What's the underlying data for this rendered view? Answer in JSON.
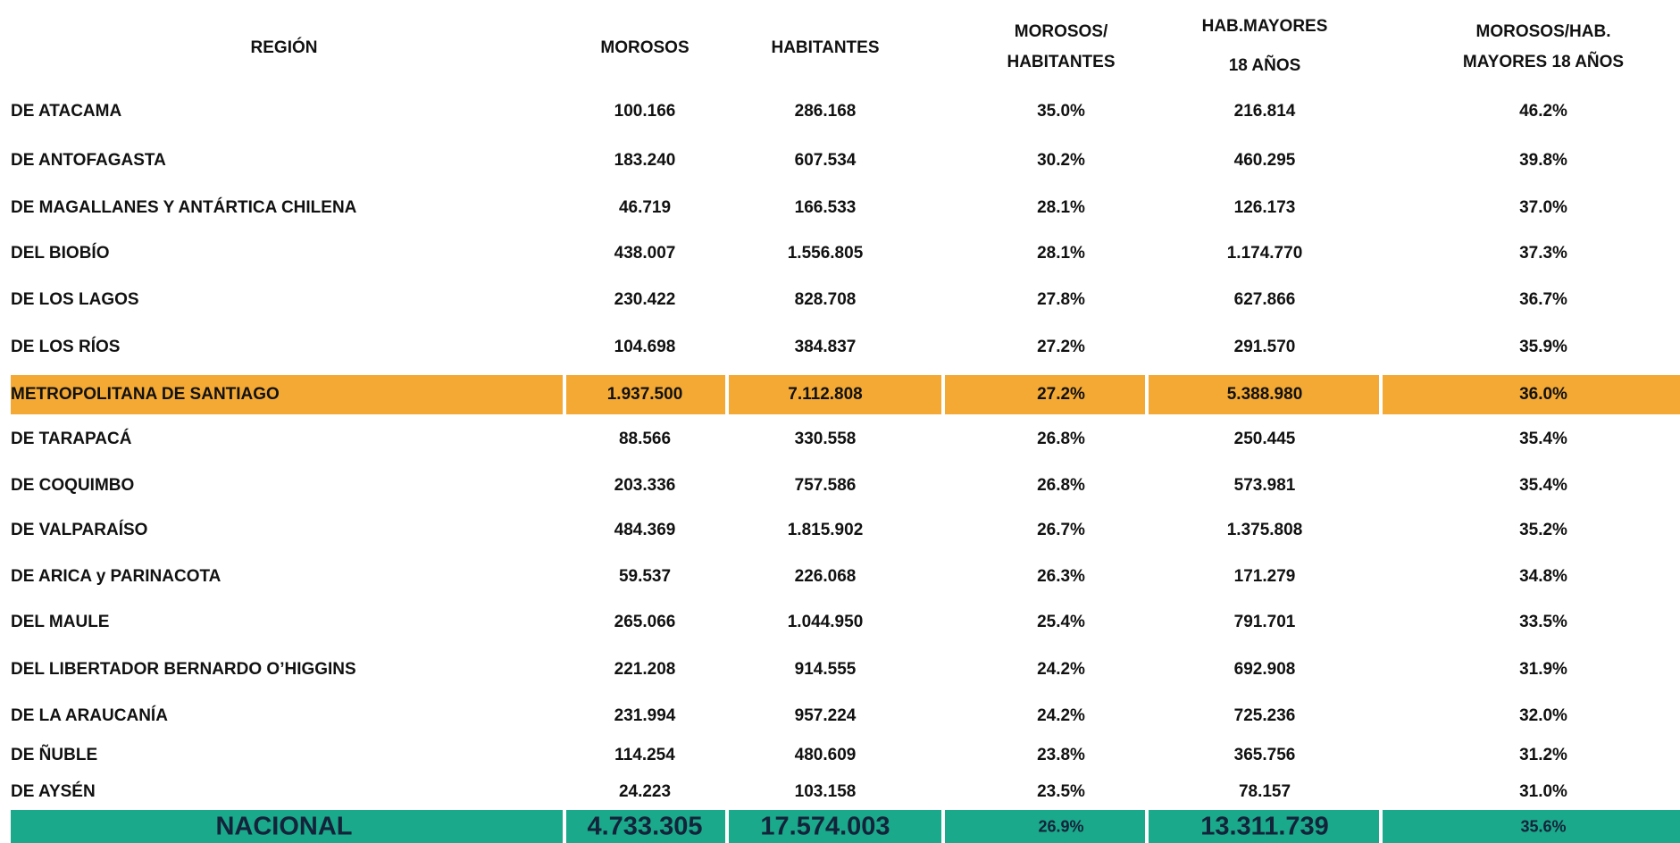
{
  "table": {
    "header": [
      [
        "REGIÓN"
      ],
      [
        "MOROSOS"
      ],
      [
        "HABITANTES"
      ],
      [
        "MOROSOS/",
        "HABITANTES"
      ],
      [
        "HAB.MAYORES",
        "18 AÑOS"
      ],
      [
        "MOROSOS/HAB.",
        "MAYORES 18 AÑOS"
      ]
    ],
    "rows": [
      {
        "cells": [
          "DE ATACAMA",
          "100.166",
          "286.168",
          "35.0%",
          "216.814",
          "46.2%"
        ]
      },
      {
        "cells": [
          "DE ANTOFAGASTA",
          "183.240",
          "607.534",
          "30.2%",
          "460.295",
          "39.8%"
        ]
      },
      {
        "cells": [
          "DE MAGALLANES Y ANTÁRTICA CHILENA",
          "46.719",
          "166.533",
          "28.1%",
          "126.173",
          "37.0%"
        ]
      },
      {
        "cells": [
          "DEL BIOBÍO",
          "438.007",
          "1.556.805",
          "28.1%",
          "1.174.770",
          "37.3%"
        ]
      },
      {
        "cells": [
          "DE LOS LAGOS",
          "230.422",
          "828.708",
          "27.8%",
          "627.866",
          "36.7%"
        ]
      },
      {
        "cells": [
          "DE LOS RÍOS",
          "104.698",
          "384.837",
          "27.2%",
          "291.570",
          "35.9%"
        ]
      },
      {
        "cells": [
          "METROPOLITANA DE SANTIAGO",
          "1.937.500",
          "7.112.808",
          "27.2%",
          "5.388.980",
          "36.0%"
        ],
        "fill": "#f4a934"
      },
      {
        "cells": [
          "DE TARAPACÁ",
          "88.566",
          "330.558",
          "26.8%",
          "250.445",
          "35.4%"
        ]
      },
      {
        "cells": [
          "DE COQUIMBO",
          "203.336",
          "757.586",
          "26.8%",
          "573.981",
          "35.4%"
        ]
      },
      {
        "cells": [
          "DE VALPARAÍSO",
          "484.369",
          "1.815.902",
          "26.7%",
          "1.375.808",
          "35.2%"
        ]
      },
      {
        "cells": [
          "DE ARICA y PARINACOTA",
          "59.537",
          "226.068",
          "26.3%",
          "171.279",
          "34.8%"
        ]
      },
      {
        "cells": [
          "DEL MAULE",
          "265.066",
          "1.044.950",
          "25.4%",
          "791.701",
          "33.5%"
        ]
      },
      {
        "cells": [
          "DEL LIBERTADOR BERNARDO O’HIGGINS",
          "221.208",
          "914.555",
          "24.2%",
          "692.908",
          "31.9%"
        ]
      },
      {
        "cells": [
          "DE LA ARAUCANÍA",
          "231.994",
          "957.224",
          "24.2%",
          "725.236",
          "32.0%"
        ]
      },
      {
        "cells": [
          "DE ÑUBLE",
          "114.254",
          "480.609",
          "23.8%",
          "365.756",
          "31.2%"
        ]
      },
      {
        "cells": [
          "DE AYSÉN",
          "24.223",
          "103.158",
          "23.5%",
          "78.157",
          "31.0%"
        ]
      }
    ],
    "total": {
      "cells": [
        "NACIONAL",
        "4.733.305",
        "17.574.003",
        "26.9%",
        "13.311.739",
        "35.6%"
      ],
      "fill": "#1aa98b"
    }
  }
}
